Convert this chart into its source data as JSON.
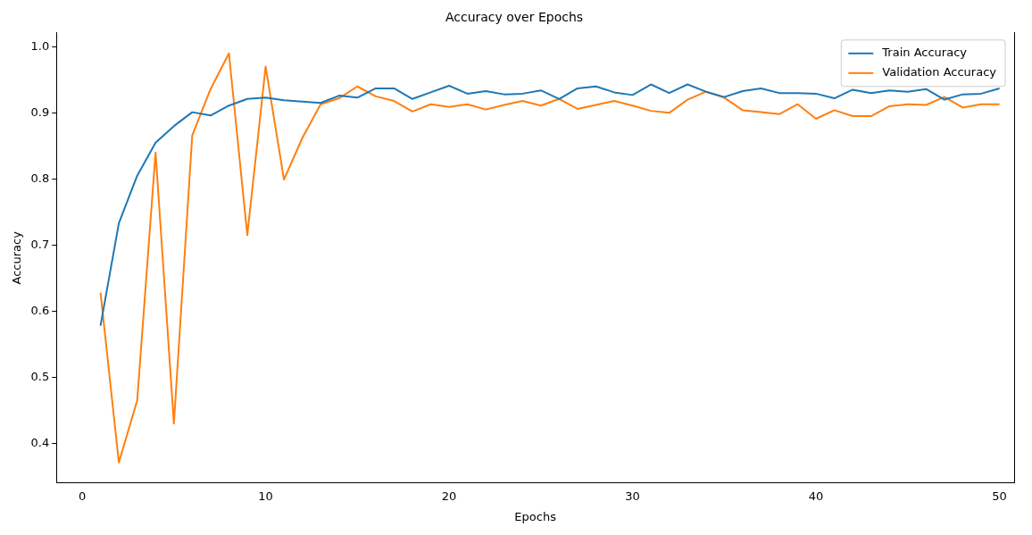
{
  "chart_data": {
    "type": "line",
    "title": "Accuracy over Epochs",
    "xlabel": "Epochs",
    "ylabel": "Accuracy",
    "x": [
      1,
      2,
      3,
      4,
      5,
      6,
      7,
      8,
      9,
      10,
      11,
      12,
      13,
      14,
      15,
      16,
      17,
      18,
      19,
      20,
      21,
      22,
      23,
      24,
      25,
      26,
      27,
      28,
      29,
      30,
      31,
      32,
      33,
      34,
      35,
      36,
      37,
      38,
      39,
      40,
      41,
      42,
      43,
      44,
      45,
      46,
      47,
      48,
      49,
      50
    ],
    "series": [
      {
        "name": "Train Accuracy",
        "color": "#1f77b4",
        "values": [
          0.578,
          0.733,
          0.805,
          0.855,
          0.88,
          0.901,
          0.896,
          0.911,
          0.921,
          0.923,
          0.919,
          0.917,
          0.915,
          0.926,
          0.923,
          0.937,
          0.937,
          0.921,
          0.931,
          0.941,
          0.929,
          0.933,
          0.928,
          0.929,
          0.934,
          0.921,
          0.937,
          0.94,
          0.931,
          0.927,
          0.943,
          0.93,
          0.943,
          0.932,
          0.924,
          0.933,
          0.937,
          0.93,
          0.93,
          0.929,
          0.922,
          0.935,
          0.93,
          0.934,
          0.932,
          0.936,
          0.92,
          0.928,
          0.929,
          0.937
        ]
      },
      {
        "name": "Validation Accuracy",
        "color": "#ff7f0e",
        "values": [
          0.628,
          0.371,
          0.465,
          0.84,
          0.43,
          0.866,
          0.936,
          0.99,
          0.715,
          0.97,
          0.799,
          0.862,
          0.913,
          0.922,
          0.94,
          0.925,
          0.918,
          0.902,
          0.913,
          0.909,
          0.913,
          0.905,
          0.912,
          0.918,
          0.911,
          0.921,
          0.906,
          0.912,
          0.918,
          0.911,
          0.903,
          0.9,
          0.92,
          0.932,
          0.923,
          0.904,
          0.901,
          0.898,
          0.913,
          0.891,
          0.904,
          0.895,
          0.895,
          0.91,
          0.913,
          0.912,
          0.924,
          0.908,
          0.913,
          0.913
        ]
      }
    ],
    "xlim": [
      -1.4,
      50.8
    ],
    "xticks": [
      0,
      10,
      20,
      30,
      40,
      50
    ],
    "ylim": [
      0.34,
      1.021
    ],
    "yticks": [
      {
        "value": 0.4,
        "label": "0.4"
      },
      {
        "value": 0.5,
        "label": "0.5"
      },
      {
        "value": 0.6,
        "label": "0.6"
      },
      {
        "value": 0.7,
        "label": "0.7"
      },
      {
        "value": 0.8,
        "label": "0.8"
      },
      {
        "value": 0.9,
        "label": "0.9"
      },
      {
        "value": 1.0,
        "label": "1.0"
      }
    ],
    "grid": false,
    "legend": "top right",
    "marker": "none",
    "line_style": "solid"
  }
}
